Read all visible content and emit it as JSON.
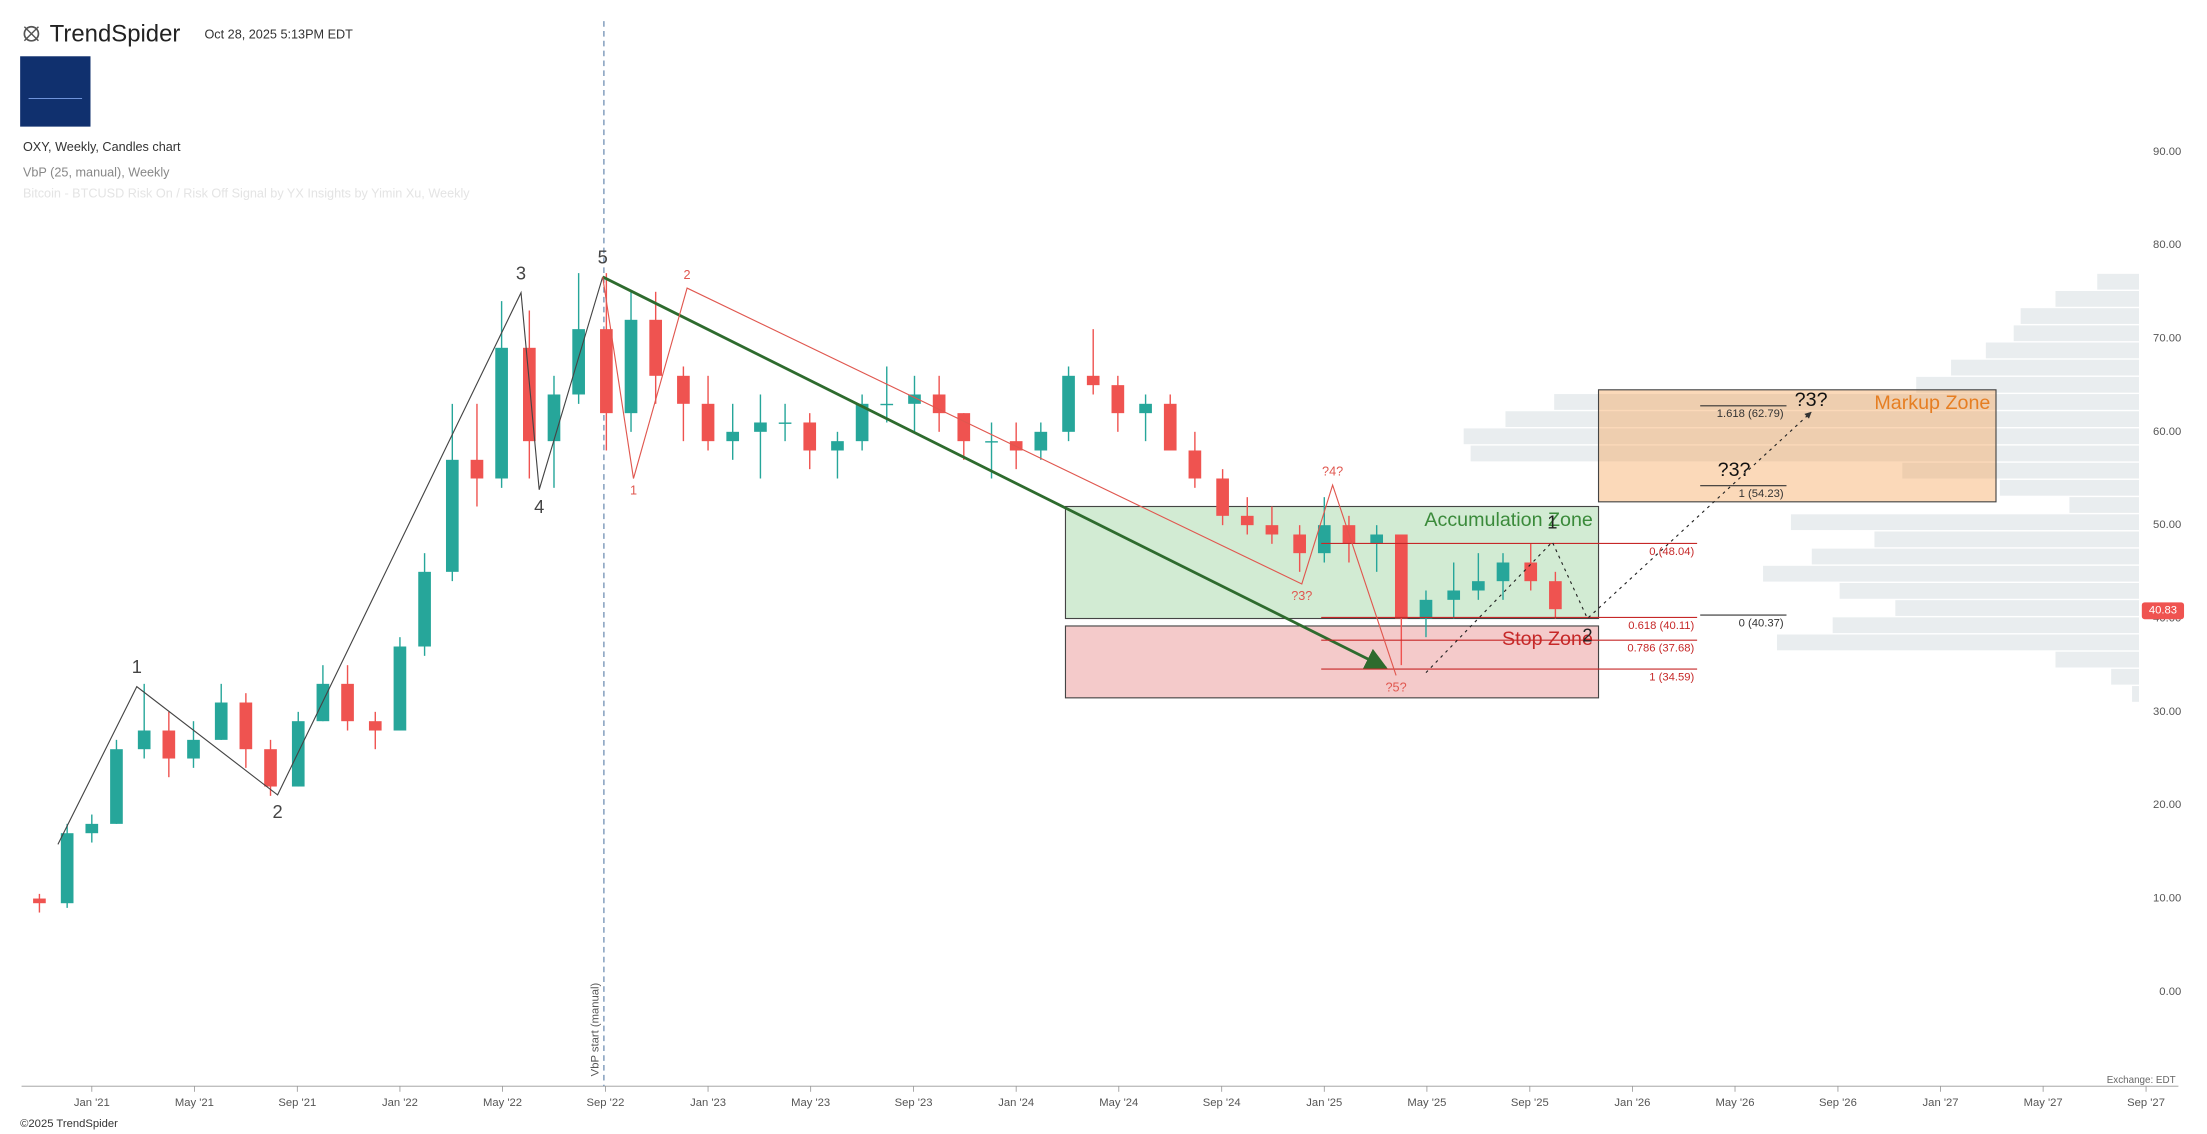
{
  "header": {
    "brand": "TrendSpider",
    "timestamp": "Oct 28, 2025 5:13PM EDT"
  },
  "footer": {
    "copyright": "©2025 TrendSpider",
    "exchange": "Exchange: EDT"
  },
  "chart_data": {
    "type": "candlestick",
    "title": "OXY, Weekly, Candles chart",
    "subtitle": "VbP (25, manual), Weekly",
    "indicator_note": "Bitcoin - BTCUSD Risk On / Risk Off Signal by YX Insights by Yimin Xu, Weekly",
    "colors": {
      "up": "#26a69a",
      "down": "#ef5350"
    },
    "x": [
      2020.83,
      2020.92,
      2021.0,
      2021.08,
      2021.17,
      2021.25,
      2021.33,
      2021.42,
      2021.5,
      2021.58,
      2021.67,
      2021.75,
      2021.83,
      2021.92,
      2022.0,
      2022.08,
      2022.17,
      2022.25,
      2022.33,
      2022.42,
      2022.5,
      2022.58,
      2022.67,
      2022.75,
      2022.83,
      2022.92,
      2023.0,
      2023.08,
      2023.17,
      2023.25,
      2023.33,
      2023.42,
      2023.5,
      2023.58,
      2023.67,
      2023.75,
      2023.83,
      2023.92,
      2024.0,
      2024.08,
      2024.17,
      2024.25,
      2024.33,
      2024.42,
      2024.5,
      2024.58,
      2024.67,
      2024.75,
      2024.83,
      2024.92,
      2025.0,
      2025.08,
      2025.17,
      2025.25,
      2025.33,
      2025.42,
      2025.5,
      2025.58,
      2025.67,
      2025.75
    ],
    "open": [
      10,
      9.5,
      17,
      18,
      26,
      28,
      25,
      27,
      31,
      26,
      22,
      29,
      33,
      29,
      28,
      37,
      45,
      57,
      55,
      69,
      59,
      64,
      71,
      62,
      72,
      66,
      63,
      59,
      60,
      61,
      61,
      58,
      59,
      63,
      63,
      64,
      62,
      59,
      59,
      58,
      60,
      66,
      65,
      62,
      63,
      58,
      55,
      51,
      50,
      49,
      47,
      50,
      48,
      49,
      40,
      42,
      43,
      44,
      46,
      44
    ],
    "high": [
      10.5,
      18,
      19,
      27,
      33,
      30,
      29,
      33,
      32,
      27,
      30,
      35,
      35,
      30,
      38,
      47,
      63,
      63,
      74,
      73,
      66,
      77,
      77,
      75,
      75,
      67,
      66,
      63,
      64,
      63,
      62,
      60,
      64,
      67,
      66,
      66,
      62,
      61,
      61,
      61,
      67,
      71,
      66,
      64,
      64,
      60,
      56,
      53,
      52,
      50,
      53,
      51,
      50,
      49,
      43,
      46,
      47,
      47,
      48,
      45
    ],
    "low": [
      8.5,
      9,
      16,
      18,
      25,
      23,
      24,
      27,
      24,
      21,
      22,
      29,
      28,
      26,
      28,
      36,
      44,
      52,
      54,
      55,
      54,
      63,
      58,
      60,
      63,
      59,
      58,
      57,
      55,
      59,
      56,
      55,
      58,
      61,
      60,
      60,
      57,
      55,
      56,
      57,
      59,
      64,
      60,
      59,
      58,
      54,
      50,
      49,
      48,
      45,
      46,
      46,
      45,
      35,
      38,
      40,
      42,
      42,
      43,
      40
    ],
    "close": [
      9.5,
      17,
      18,
      26,
      28,
      25,
      27,
      31,
      26,
      22,
      29,
      33,
      29,
      28,
      37,
      45,
      57,
      55,
      69,
      59,
      64,
      71,
      62,
      72,
      66,
      63,
      59,
      60,
      61,
      61,
      58,
      59,
      63,
      63,
      64,
      62,
      59,
      59,
      58,
      60,
      66,
      65,
      62,
      63,
      58,
      55,
      51,
      50,
      49,
      47,
      50,
      48,
      49,
      40,
      42,
      43,
      44,
      46,
      44,
      41
    ],
    "last_price": 40.83,
    "xlim": [
      2020.772,
      2027.772
    ],
    "xticks": [
      {
        "value": 2021.0,
        "label": "Jan '21"
      },
      {
        "value": 2021.333,
        "label": "May '21"
      },
      {
        "value": 2021.667,
        "label": "Sep '21"
      },
      {
        "value": 2022.0,
        "label": "Jan '22"
      },
      {
        "value": 2022.333,
        "label": "May '22"
      },
      {
        "value": 2022.667,
        "label": "Sep '22"
      },
      {
        "value": 2023.0,
        "label": "Jan '23"
      },
      {
        "value": 2023.333,
        "label": "May '23"
      },
      {
        "value": 2023.667,
        "label": "Sep '23"
      },
      {
        "value": 2024.0,
        "label": "Jan '24"
      },
      {
        "value": 2024.333,
        "label": "May '24"
      },
      {
        "value": 2024.667,
        "label": "Sep '24"
      },
      {
        "value": 2025.0,
        "label": "Jan '25"
      },
      {
        "value": 2025.333,
        "label": "May '25"
      },
      {
        "value": 2025.667,
        "label": "Sep '25"
      },
      {
        "value": 2026.0,
        "label": "Jan '26"
      },
      {
        "value": 2026.333,
        "label": "May '26"
      },
      {
        "value": 2026.667,
        "label": "Sep '26"
      },
      {
        "value": 2027.0,
        "label": "Jan '27"
      },
      {
        "value": 2027.333,
        "label": "May '27"
      },
      {
        "value": 2027.667,
        "label": "Sep '27"
      }
    ],
    "ylim": [
      -10.1,
      104.0
    ],
    "yticks": [
      {
        "value": 0,
        "label": "0.00"
      },
      {
        "value": 10,
        "label": "10.00"
      },
      {
        "value": 20,
        "label": "20.00"
      },
      {
        "value": 30,
        "label": "30.00"
      },
      {
        "value": 40,
        "label": "40.00"
      },
      {
        "value": 50,
        "label": "50.00"
      },
      {
        "value": 60,
        "label": "60.00"
      },
      {
        "value": 70,
        "label": "70.00"
      },
      {
        "value": 80,
        "label": "80.00"
      },
      {
        "value": 90,
        "label": "90.00"
      }
    ],
    "vbp": {
      "color": "#e9edef",
      "bins": [
        31,
        32.84,
        34.68,
        36.52,
        38.36,
        40.2,
        42.04,
        43.88,
        45.72,
        47.56,
        49.4,
        51.24,
        53.08,
        54.92,
        56.76,
        58.6,
        60.44,
        62.28,
        64.12,
        65.96,
        67.8,
        69.64,
        71.48,
        73.32,
        75.16,
        77
      ],
      "volumes": [
        5,
        20,
        60,
        260,
        220,
        175,
        215,
        270,
        235,
        190,
        250,
        50,
        100,
        170,
        480,
        485,
        455,
        420,
        160,
        135,
        110,
        90,
        85,
        60,
        30
      ]
    },
    "vbp_start": {
      "x": 2022.662,
      "label": "VbP start (manual)"
    },
    "zones": [
      {
        "name": "Accumulation Zone",
        "x": [
          2024.16,
          2025.89
        ],
        "y": [
          40.0,
          52.0
        ],
        "color": "rgba(76,175,80,0.25)",
        "text_color": "#3a8a3a"
      },
      {
        "name": "Stop Zone",
        "x": [
          2024.16,
          2025.89
        ],
        "y": [
          31.5,
          39.2
        ],
        "color": "rgba(220,80,80,0.3)",
        "text_color": "#c62828"
      },
      {
        "name": "Markup Zone",
        "x": [
          2025.89,
          2027.18
        ],
        "y": [
          52.5,
          64.5
        ],
        "color": "rgba(245,160,80,0.4)",
        "text_color": "#e67e22"
      }
    ],
    "fibs": [
      {
        "label": "0 (48.04)",
        "value": 48.04,
        "x": [
          2024.99,
          2026.21
        ],
        "color": "#c62828"
      },
      {
        "label": "0.618 (40.11)",
        "value": 40.11,
        "x": [
          2024.99,
          2026.21
        ],
        "color": "#c62828"
      },
      {
        "label": "0.786 (37.68)",
        "value": 37.68,
        "x": [
          2024.99,
          2026.21
        ],
        "color": "#c62828"
      },
      {
        "label": "1 (34.59)",
        "value": 34.59,
        "x": [
          2024.99,
          2026.21
        ],
        "color": "#c62828"
      },
      {
        "label": "1.618 (62.79)",
        "value": 62.79,
        "x": [
          2026.22,
          2026.5
        ],
        "color": "#333333"
      },
      {
        "label": "1 (54.23)",
        "value": 54.23,
        "x": [
          2026.22,
          2026.5
        ],
        "color": "#333333"
      },
      {
        "label": "0 (40.37)",
        "value": 40.37,
        "x": [
          2026.22,
          2026.5
        ],
        "color": "#333333"
      }
    ],
    "waves": [
      {
        "color": "#444444",
        "size": 13,
        "dash": "none",
        "points": [
          {
            "label": null,
            "x": 2020.89,
            "y": 15.8
          },
          {
            "label": "1",
            "x": 2021.146,
            "y": 32.7
          },
          {
            "label": "2",
            "x": 2021.603,
            "y": 21.1
          },
          {
            "label": "3",
            "x": 2022.393,
            "y": 74.9
          },
          {
            "label": "4",
            "x": 2022.452,
            "y": 53.8
          },
          {
            "label": "5",
            "x": 2022.658,
            "y": 76.6
          }
        ]
      },
      {
        "color": "#e0574f",
        "size": 9,
        "dash": "none",
        "points": [
          {
            "label": null,
            "x": 2022.658,
            "y": 76.6
          },
          {
            "label": "1",
            "x": 2022.758,
            "y": 55.0
          },
          {
            "label": "2",
            "x": 2022.932,
            "y": 75.4
          },
          {
            "label": "?3?",
            "x": 2024.927,
            "y": 43.7
          },
          {
            "label": "?4?",
            "x": 2025.027,
            "y": 54.3
          },
          {
            "label": "?5?",
            "x": 2025.233,
            "y": 33.9
          }
        ]
      },
      {
        "color": "#222222",
        "size": 13,
        "dash": "2 3",
        "points": [
          {
            "label": null,
            "x": 2025.33,
            "y": 34.2
          },
          {
            "label": "1",
            "x": 2025.74,
            "y": 48.2
          },
          {
            "label": "2",
            "x": 2025.854,
            "y": 40.0
          },
          {
            "label": null,
            "x": 2026.58,
            "y": 62.1
          }
        ]
      }
    ],
    "trendline": {
      "x": [
        2022.658,
        2025.2
      ],
      "y": [
        76.6,
        34.7
      ],
      "color": "#2e6b2e"
    },
    "annotations": [
      {
        "text": "?3?",
        "x": 2026.33,
        "y": 55.8
      },
      {
        "text": "?3?",
        "x": 2026.58,
        "y": 63.3
      }
    ]
  }
}
